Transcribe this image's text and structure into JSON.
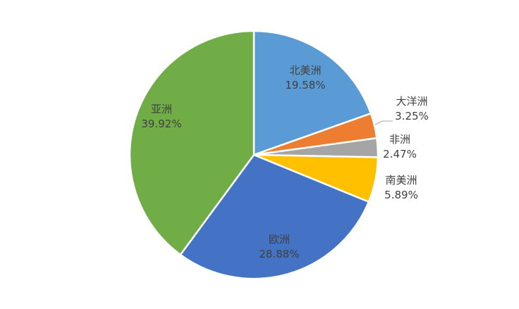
{
  "chart_data": {
    "type": "pie",
    "title": "",
    "legend": "none",
    "slices": [
      {
        "name": "北美洲",
        "value": 19.58,
        "label": "19.58%",
        "color": "#5B9BD5"
      },
      {
        "name": "大洋洲",
        "value": 3.25,
        "label": "3.25%",
        "color": "#ED7D31"
      },
      {
        "name": "非洲",
        "value": 2.47,
        "label": "2.47%",
        "color": "#A5A5A5"
      },
      {
        "name": "南美洲",
        "value": 5.89,
        "label": "5.89%",
        "color": "#FFC000"
      },
      {
        "name": "欧洲",
        "value": 28.88,
        "label": "28.88%",
        "color": "#4472C4"
      },
      {
        "name": "亚洲",
        "value": 39.92,
        "label": "39.92%",
        "color": "#70AD47"
      }
    ]
  }
}
